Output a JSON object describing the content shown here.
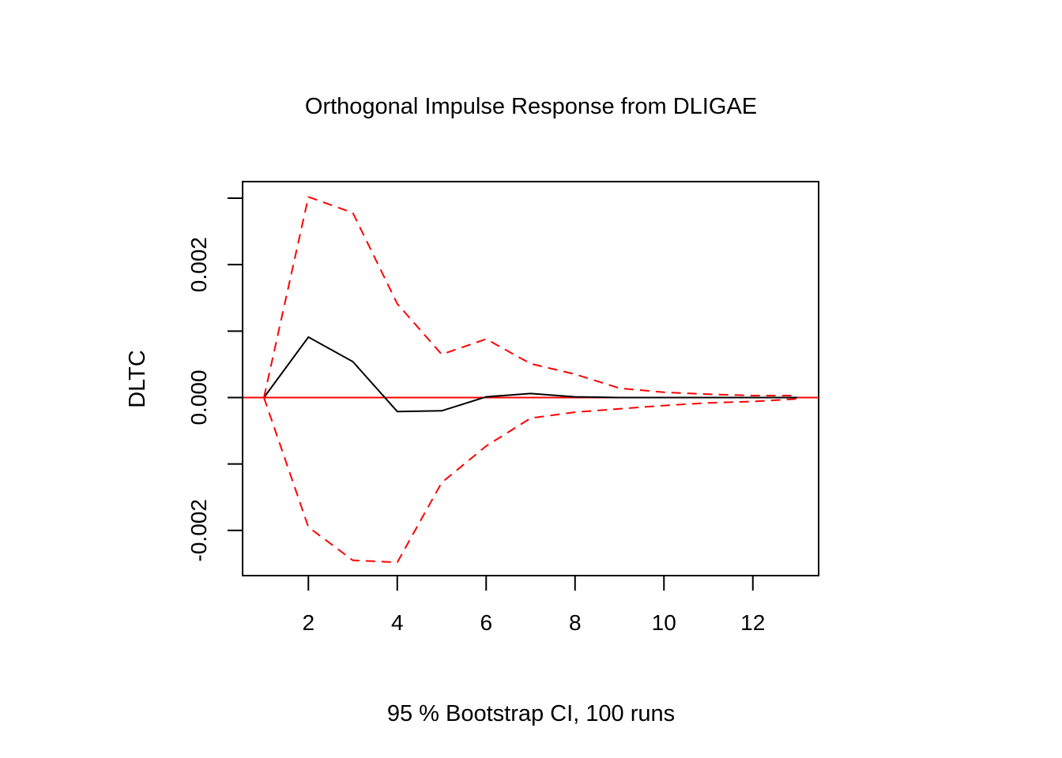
{
  "chart_data": {
    "type": "line",
    "title": "Orthogonal Impulse Response from DLIGAE",
    "xlabel": "95 % Bootstrap CI,  100 runs",
    "ylabel": "DLTC",
    "xlim": [
      0.52,
      13.48
    ],
    "ylim": [
      -0.00268,
      0.00325
    ],
    "x_ticks": [
      2,
      4,
      6,
      8,
      10,
      12
    ],
    "x_tick_labels": [
      "2",
      "4",
      "6",
      "8",
      "10",
      "12"
    ],
    "y_ticks": [
      -0.002,
      -0.001,
      0.0,
      0.001,
      0.002,
      0.003
    ],
    "y_tick_labels": [
      "-0.002",
      "",
      "0.000",
      "",
      "0.002",
      ""
    ],
    "grid": false,
    "x": [
      1,
      2,
      3,
      4,
      5,
      6,
      7,
      8,
      9,
      10,
      11,
      12,
      13
    ],
    "series": [
      {
        "role": "response",
        "color": "#000000",
        "dash": "solid",
        "values": [
          0.0,
          0.00091,
          0.00054,
          -0.00021,
          -0.0002,
          1e-05,
          6e-05,
          1e-05,
          0.0,
          0.0,
          0.0,
          0.0,
          0.0
        ]
      },
      {
        "role": "upper-ci",
        "color": "#ff0000",
        "dash": "dashed",
        "values": [
          0.0,
          0.00302,
          0.00278,
          0.00141,
          0.00065,
          0.00088,
          0.00051,
          0.00035,
          0.00014,
          8e-05,
          5e-05,
          3e-05,
          3e-05
        ]
      },
      {
        "role": "lower-ci",
        "color": "#ff0000",
        "dash": "dashed",
        "values": [
          0.0,
          -0.00195,
          -0.00245,
          -0.00248,
          -0.00128,
          -0.00073,
          -0.00031,
          -0.00022,
          -0.00017,
          -0.00012,
          -8e-05,
          -6e-05,
          -2e-05
        ]
      }
    ],
    "reference_line": {
      "y": 0.0,
      "color": "#ff0000"
    }
  }
}
